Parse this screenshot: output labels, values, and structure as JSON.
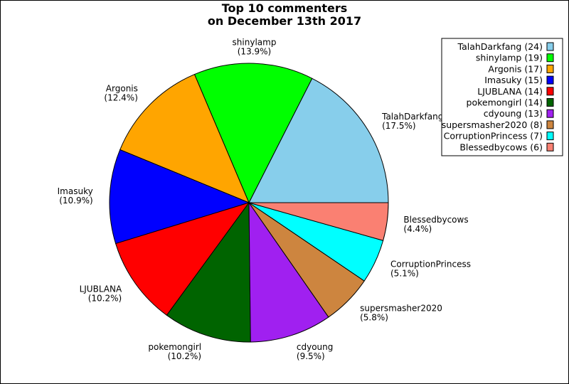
{
  "chart_data": {
    "type": "pie",
    "title": [
      "Top 10 commenters",
      "on December 13th 2017"
    ],
    "legend_position": "top-right",
    "slices": [
      {
        "name": "TalahDarkfang",
        "value": 24,
        "percent": "17.5%",
        "legend": "TalahDarkfang (24)",
        "color": "#87ceeb"
      },
      {
        "name": "shinylamp",
        "value": 19,
        "percent": "13.9%",
        "legend": "shinylamp (19)",
        "color": "#00ff00"
      },
      {
        "name": "Argonis",
        "value": 17,
        "percent": "12.4%",
        "legend": "Argonis (17)",
        "color": "#ffa500"
      },
      {
        "name": "Imasuky",
        "value": 15,
        "percent": "10.9%",
        "legend": "Imasuky (15)",
        "color": "#0000ff"
      },
      {
        "name": "LJUBLANA",
        "value": 14,
        "percent": "10.2%",
        "legend": "LJUBLANA (14)",
        "color": "#ff0000"
      },
      {
        "name": "pokemongirl",
        "value": 14,
        "percent": "10.2%",
        "legend": "pokemongirl (14)",
        "color": "#006400"
      },
      {
        "name": "cdyoung",
        "value": 13,
        "percent": "9.5%",
        "legend": "cdyoung (13)",
        "color": "#a020f0"
      },
      {
        "name": "supersmasher2020",
        "value": 8,
        "percent": "5.8%",
        "legend": "supersmasher2020 (8)",
        "color": "#cd853f"
      },
      {
        "name": "CorruptionPrincess",
        "value": 7,
        "percent": "5.1%",
        "legend": "CorruptionPrincess (7)",
        "color": "#00ffff"
      },
      {
        "name": "Blessedbycows",
        "value": 6,
        "percent": "4.4%",
        "legend": "Blessedbycows (6)",
        "color": "#fa8072"
      }
    ]
  }
}
